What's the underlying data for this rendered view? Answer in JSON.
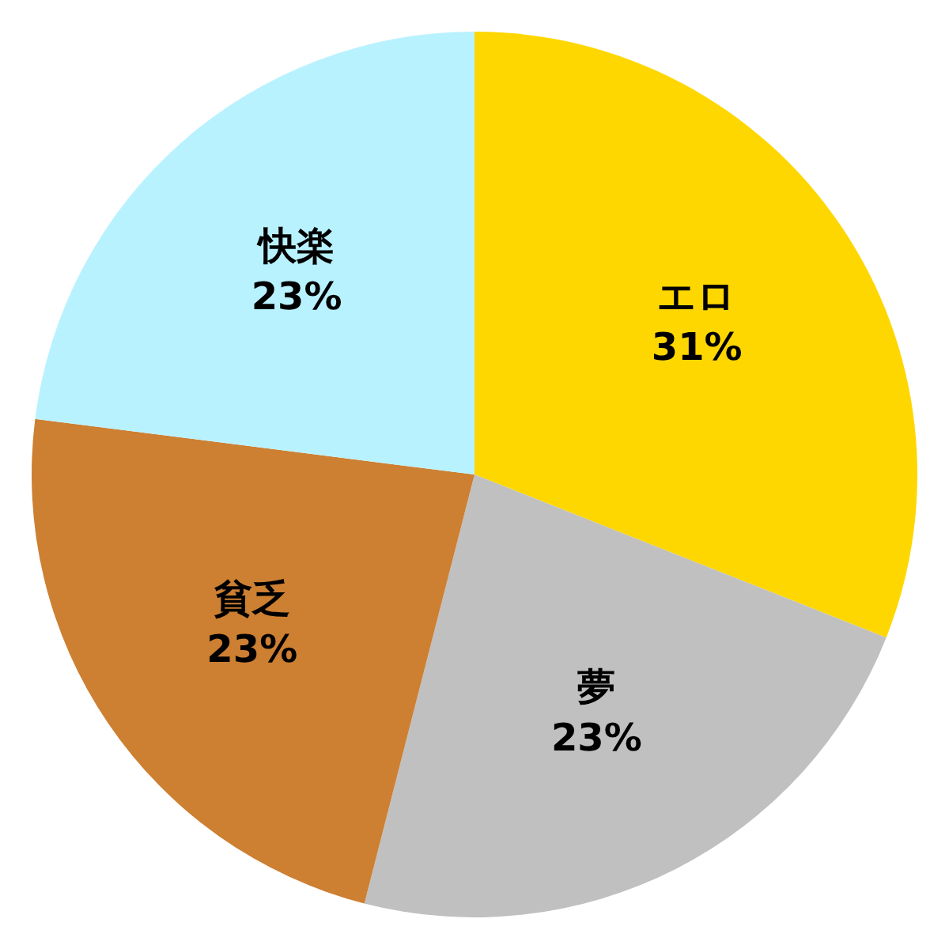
{
  "chart_data": {
    "type": "pie",
    "categories": [
      "エロ",
      "夢",
      "貧乏",
      "快楽"
    ],
    "values": [
      31,
      23,
      23,
      23
    ],
    "value_labels": [
      "31%",
      "23%",
      "23%",
      "23%"
    ],
    "colors": [
      "#ffd700",
      "#c0c0c0",
      "#cd7f32",
      "#b9f2ff"
    ]
  }
}
